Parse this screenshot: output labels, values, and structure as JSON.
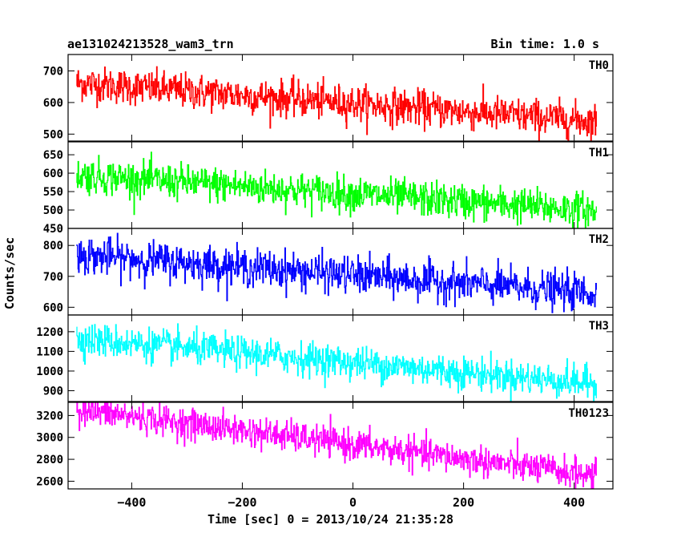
{
  "header": {
    "title": "ae131024213528_wam3_trn",
    "bin_time": "Bin time: 1.0 s"
  },
  "axes": {
    "xlabel": "Time [sec] 0 = 2013/10/24 21:35:28",
    "ylabel": "Counts/sec"
  },
  "chart_data": [
    {
      "type": "line",
      "name": "TH0",
      "color": "#ff0000",
      "x_range": [
        -500,
        440
      ],
      "xlim": [
        -515,
        470
      ],
      "ylim": [
        478,
        752
      ],
      "yticks": [
        500,
        600,
        700
      ],
      "trend": {
        "start": 662,
        "end": 540
      },
      "noise": 28,
      "tmax": 440
    },
    {
      "type": "line",
      "name": "TH1",
      "color": "#00ff00",
      "x_range": [
        -500,
        440
      ],
      "xlim": [
        -515,
        470
      ],
      "ylim": [
        450,
        685
      ],
      "yticks": [
        450,
        500,
        550,
        600,
        650
      ],
      "trend": {
        "start": 595,
        "end": 498
      },
      "noise": 24,
      "tmax": 440
    },
    {
      "type": "line",
      "name": "TH2",
      "color": "#0000ff",
      "x_range": [
        -500,
        440
      ],
      "xlim": [
        -515,
        470
      ],
      "ylim": [
        575,
        855
      ],
      "yticks": [
        600,
        700,
        800
      ],
      "trend": {
        "start": 770,
        "end": 645
      },
      "noise": 30,
      "tmax": 440
    },
    {
      "type": "line",
      "name": "TH3",
      "color": "#00ffff",
      "x_range": [
        -500,
        440
      ],
      "xlim": [
        -515,
        470
      ],
      "ylim": [
        845,
        1285
      ],
      "yticks": [
        900,
        1000,
        1100,
        1200
      ],
      "trend": {
        "start": 1165,
        "end": 935
      },
      "noise": 42,
      "tmax": 440
    },
    {
      "type": "line",
      "name": "TH0123",
      "color": "#ff00ff",
      "x_range": [
        -500,
        440
      ],
      "xlim": [
        -515,
        470
      ],
      "ylim": [
        2530,
        3320
      ],
      "yticks": [
        2600,
        2800,
        3000,
        3200
      ],
      "trend": {
        "start": 3255,
        "end": 2650
      },
      "noise": 70,
      "tmax": 440
    }
  ],
  "x_axis": {
    "ticks": [
      -400,
      -200,
      0,
      200,
      400
    ],
    "tick_labels": [
      "−400",
      "−200",
      "0",
      "200",
      "400"
    ]
  }
}
